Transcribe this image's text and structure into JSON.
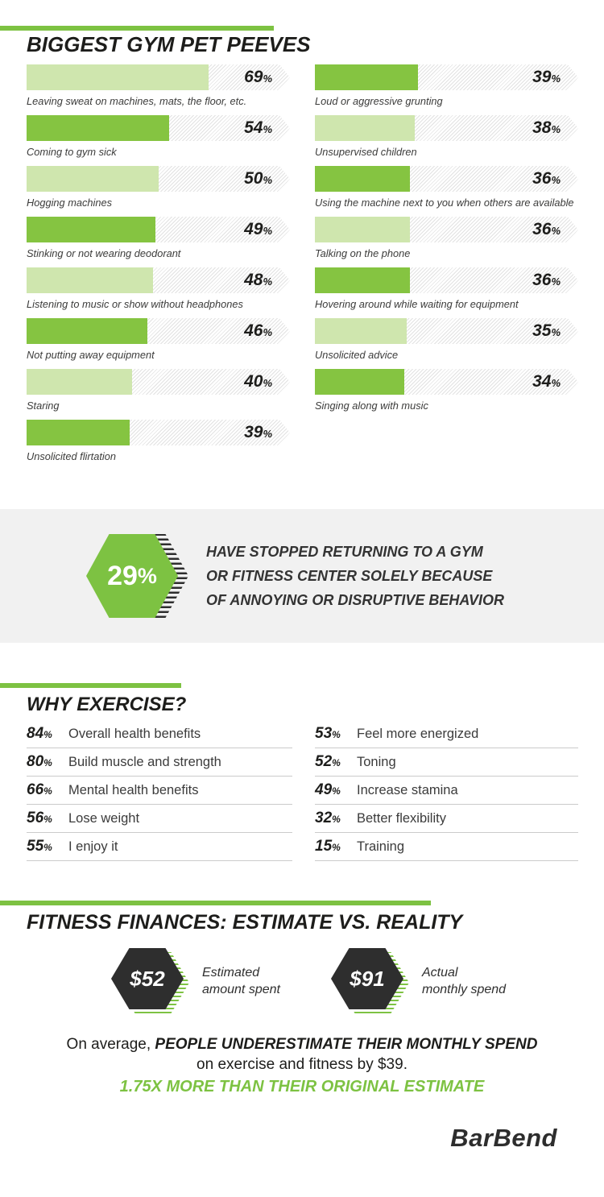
{
  "theme": {
    "accent": "#7DC242",
    "bar_dark": "#85C441",
    "bar_light": "#CFE6AE",
    "dark": "#2E2E2E",
    "band_bg": "#F1F1F1"
  },
  "unit_percent": "%",
  "pet_peeves": {
    "title": "BIGGEST GYM PET PEEVES",
    "columns": {
      "left": [
        {
          "value": 69,
          "label": "Leaving sweat on machines, mats, the floor, etc.",
          "shade": "light"
        },
        {
          "value": 54,
          "label": "Coming to gym sick",
          "shade": "dark"
        },
        {
          "value": 50,
          "label": "Hogging machines",
          "shade": "light"
        },
        {
          "value": 49,
          "label": "Stinking or not wearing deodorant",
          "shade": "dark"
        },
        {
          "value": 48,
          "label": "Listening to music or show without headphones",
          "shade": "light"
        },
        {
          "value": 46,
          "label": "Not putting away equipment",
          "shade": "dark"
        },
        {
          "value": 40,
          "label": "Staring",
          "shade": "light"
        },
        {
          "value": 39,
          "label": "Unsolicited flirtation",
          "shade": "dark"
        }
      ],
      "right": [
        {
          "value": 39,
          "label": "Loud or aggressive grunting",
          "shade": "dark"
        },
        {
          "value": 38,
          "label": "Unsupervised children",
          "shade": "light"
        },
        {
          "value": 36,
          "label": "Using the machine next to you when others are available",
          "shade": "dark"
        },
        {
          "value": 36,
          "label": "Talking on the phone",
          "shade": "light"
        },
        {
          "value": 36,
          "label": "Hovering around while waiting for equipment",
          "shade": "dark"
        },
        {
          "value": 35,
          "label": "Unsolicited advice",
          "shade": "light"
        },
        {
          "value": 34,
          "label": "Singing along with music",
          "shade": "dark"
        }
      ]
    }
  },
  "callout": {
    "stat_value": "29",
    "stat_unit": "%",
    "lines": [
      "HAVE STOPPED RETURNING TO A GYM",
      "OR FITNESS CENTER SOLELY BECAUSE",
      "OF ANNOYING OR DISRUPTIVE BEHAVIOR"
    ]
  },
  "why_exercise": {
    "title": "WHY EXERCISE?",
    "columns": {
      "left": [
        {
          "value": 84,
          "label": "Overall health benefits"
        },
        {
          "value": 80,
          "label": "Build muscle and strength"
        },
        {
          "value": 66,
          "label": "Mental health benefits"
        },
        {
          "value": 56,
          "label": "Lose weight"
        },
        {
          "value": 55,
          "label": "I enjoy it"
        }
      ],
      "right": [
        {
          "value": 53,
          "label": "Feel more energized"
        },
        {
          "value": 52,
          "label": "Toning"
        },
        {
          "value": 49,
          "label": "Increase stamina"
        },
        {
          "value": 32,
          "label": "Better flexibility"
        },
        {
          "value": 15,
          "label": "Training"
        }
      ]
    }
  },
  "finances": {
    "title": "FITNESS FINANCES: ESTIMATE VS. REALITY",
    "stats": [
      {
        "amount": "$52",
        "label_lines": [
          "Estimated",
          "amount spent"
        ]
      },
      {
        "amount": "$91",
        "label_lines": [
          "Actual",
          "monthly spend"
        ]
      }
    ],
    "summary": {
      "prefix": "On average, ",
      "bold": "PEOPLE UNDERESTIMATE THEIR MONTHLY SPEND",
      "line2": "on exercise and fitness by $39.",
      "highlight": "1.75X MORE THAN THEIR ORIGINAL ESTIMATE"
    }
  },
  "logo": {
    "initial": "B",
    "rest": "arBend"
  },
  "chart_data": [
    {
      "type": "bar",
      "orientation": "horizontal",
      "title": "BIGGEST GYM PET PEEVES",
      "unit": "%",
      "xlim": [
        0,
        100
      ],
      "categories": [
        "Leaving sweat on machines, mats, the floor, etc.",
        "Coming to gym sick",
        "Hogging machines",
        "Stinking or not wearing deodorant",
        "Listening to music or show without headphones",
        "Not putting away equipment",
        "Staring",
        "Unsolicited flirtation",
        "Loud or aggressive grunting",
        "Unsupervised children",
        "Using the machine next to you when others are available",
        "Talking on the phone",
        "Hovering around while waiting for equipment",
        "Unsolicited advice",
        "Singing along with music"
      ],
      "values": [
        69,
        54,
        50,
        49,
        48,
        46,
        40,
        39,
        39,
        38,
        36,
        36,
        36,
        35,
        34
      ],
      "annotations": [
        "29% have stopped returning to a gym or fitness center solely because of annoying or disruptive behavior"
      ]
    },
    {
      "type": "table",
      "title": "WHY EXERCISE?",
      "unit": "%",
      "categories": [
        "Overall health benefits",
        "Build muscle and strength",
        "Mental health benefits",
        "Lose weight",
        "I enjoy it",
        "Feel more energized",
        "Toning",
        "Increase stamina",
        "Better flexibility",
        "Training"
      ],
      "values": [
        84,
        80,
        66,
        56,
        55,
        53,
        52,
        49,
        32,
        15
      ]
    },
    {
      "type": "table",
      "title": "FITNESS FINANCES: ESTIMATE VS. REALITY",
      "unit": "$",
      "categories": [
        "Estimated amount spent",
        "Actual monthly spend"
      ],
      "values": [
        52,
        91
      ],
      "annotations": [
        "On average, people underestimate their monthly spend on exercise and fitness by $39.",
        "1.75x more than their original estimate"
      ]
    }
  ]
}
